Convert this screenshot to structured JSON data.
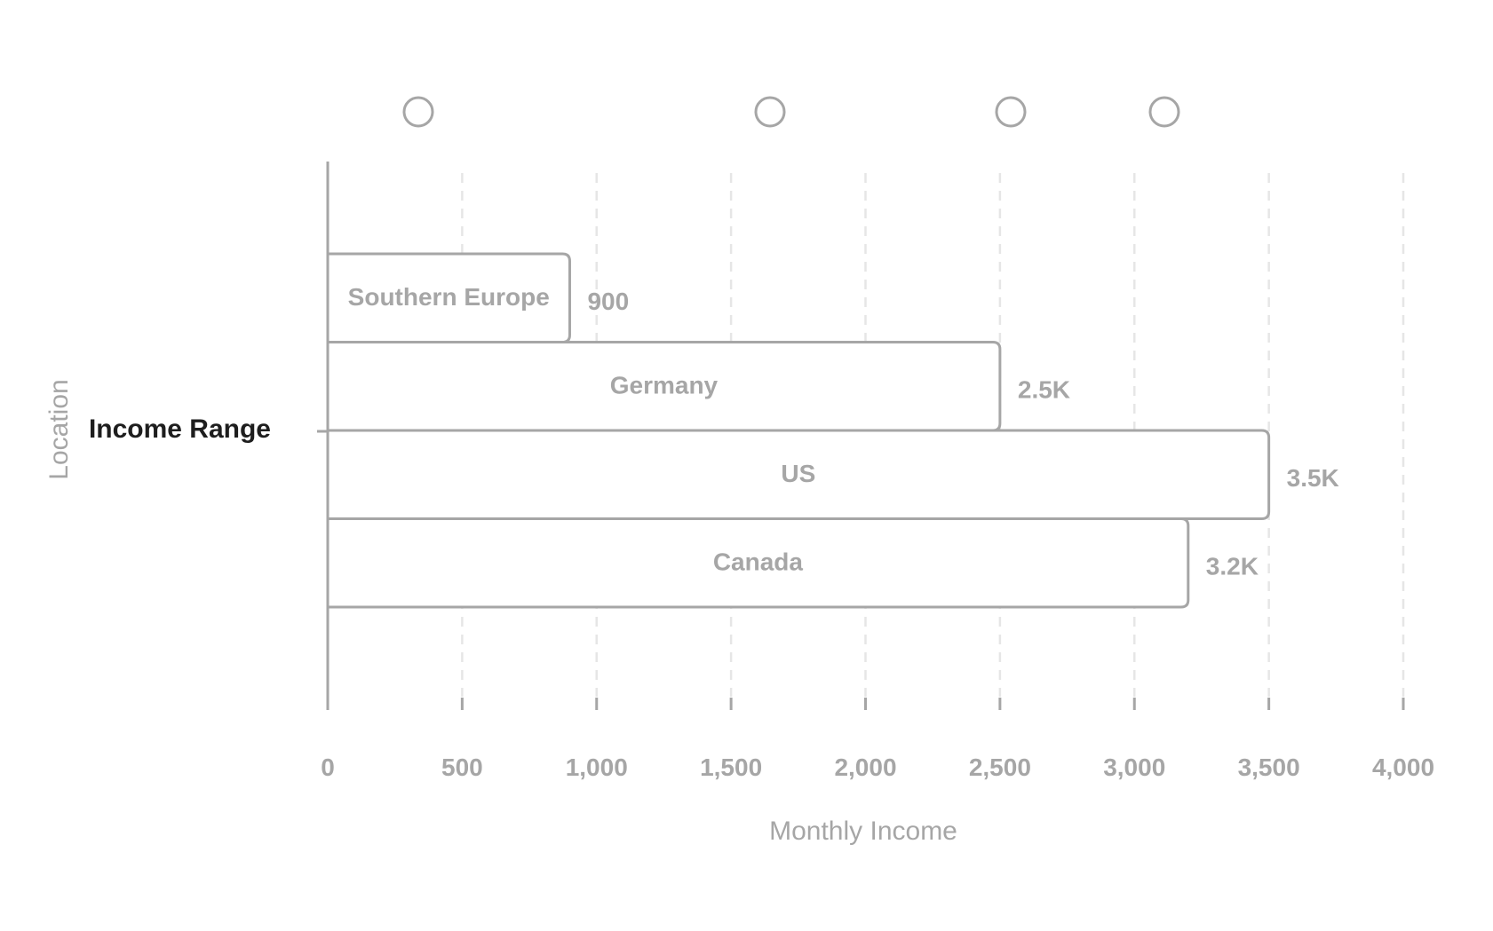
{
  "chart_data": {
    "type": "bar",
    "orientation": "horizontal",
    "stacked": true,
    "category": "Income Range",
    "xlabel": "Monthly Income",
    "ylabel": "Location",
    "xlim": [
      0,
      4000
    ],
    "xticks": [
      0,
      500,
      1000,
      1500,
      2000,
      2500,
      3000,
      3500,
      4000
    ],
    "xtick_labels": [
      "0",
      "500",
      "1,000",
      "1,500",
      "2,000",
      "2,500",
      "3,000",
      "3,500",
      "4,000"
    ],
    "grid": "vertical-dashed",
    "legend": "top",
    "series": [
      {
        "name": "Southern Europe",
        "value": 900,
        "value_label": "900"
      },
      {
        "name": "Germany",
        "value": 2500,
        "value_label": "2.5K"
      },
      {
        "name": "US",
        "value": 3500,
        "value_label": "3.5K"
      },
      {
        "name": "Canada",
        "value": 3200,
        "value_label": "3.2K"
      }
    ],
    "colors": {
      "stroke": "#a6a6a6",
      "text": "#a6a6a6",
      "category_text": "#1e1e1e",
      "grid": "#e6e6e6",
      "fill": "#ffffff"
    }
  }
}
